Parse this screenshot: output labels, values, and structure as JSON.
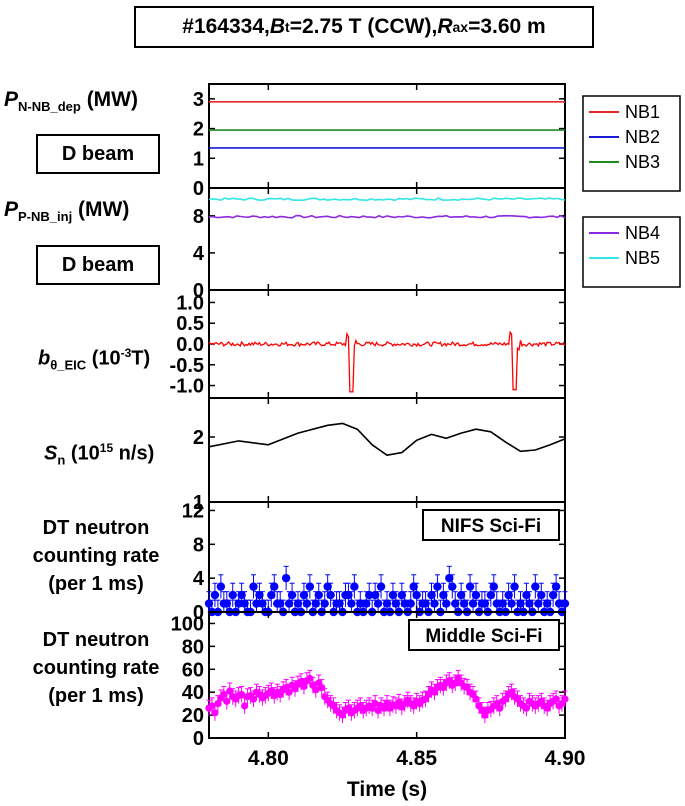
{
  "figure": {
    "title_parts": [
      "#164334, ",
      "B",
      "t",
      "=2.75 T (CCW), ",
      "R",
      "ax",
      "=3.60 m"
    ],
    "xlabel": "Time (s)"
  },
  "panels_labels": {
    "p_nnb": {
      "sym": "P",
      "sub": "N-NB_dep",
      "unit": " (MW)",
      "box": "D beam"
    },
    "p_pnb": {
      "sym": "P",
      "sub": "P-NB_inj",
      "unit": " (MW)",
      "box": "D beam"
    },
    "b_theta": {
      "sym": "b",
      "sub": "θ_EIC",
      "unit_pre": " (10",
      "unit_sup": "-3",
      "unit_post": "T)"
    },
    "sn": {
      "sym": "S",
      "sub": "n",
      "unit_pre": " (10",
      "unit_sup": "15",
      "unit_post": " n/s)"
    },
    "dt1": {
      "lines": [
        "DT neutron",
        "counting rate",
        "(per 1 ms)"
      ]
    },
    "dt2": {
      "lines": [
        "DT neutron",
        "counting rate",
        "(per 1 ms)"
      ]
    }
  },
  "colors": {
    "NB1": "#e8262b",
    "NB2": "#1a1ad4",
    "NB3": "#1f8a1f",
    "NB4": "#8a2be2",
    "NB5": "#33e6e6",
    "b_theta": "#ff0000",
    "sn": "#000000",
    "nifs": "#0000ff",
    "middle": "#ff00ff"
  },
  "chart_data": [
    {
      "type": "line",
      "id": "p_nnb",
      "xlim": [
        4.78,
        4.9
      ],
      "ylim": [
        0,
        3.5
      ],
      "yticks": [
        "0",
        "1",
        "2",
        "3"
      ],
      "ytick_values": [
        0,
        1,
        2,
        3
      ],
      "series": [
        {
          "name": "NB1",
          "x": [
            4.78,
            4.9
          ],
          "values": [
            2.9,
            2.9
          ]
        },
        {
          "name": "NB2",
          "x": [
            4.78,
            4.9
          ],
          "values": [
            1.35,
            1.35
          ]
        },
        {
          "name": "NB3",
          "x": [
            4.78,
            4.9
          ],
          "values": [
            1.95,
            1.95
          ]
        }
      ],
      "legend": [
        "NB1",
        "NB2",
        "NB3"
      ],
      "legend_position": "right"
    },
    {
      "type": "line",
      "id": "p_pnb",
      "xlim": [
        4.78,
        4.9
      ],
      "ylim": [
        0,
        11
      ],
      "yticks": [
        "0",
        "4",
        "8"
      ],
      "ytick_values": [
        0,
        4,
        8
      ],
      "series": [
        {
          "name": "NB4",
          "x": [
            4.78,
            4.9
          ],
          "values": [
            7.9,
            7.9
          ]
        },
        {
          "name": "NB5",
          "x": [
            4.78,
            4.9
          ],
          "values": [
            9.8,
            9.8
          ]
        }
      ],
      "legend": [
        "NB4",
        "NB5"
      ],
      "legend_position": "right"
    },
    {
      "type": "line",
      "id": "b_theta",
      "xlim": [
        4.78,
        4.9
      ],
      "ylim": [
        -1.3,
        1.3
      ],
      "yticks": [
        "1.0",
        "0.5",
        "0.0",
        "-0.5",
        "-1.0"
      ],
      "ytick_values": [
        1.0,
        0.5,
        0.0,
        -0.5,
        -1.0
      ],
      "series": [
        {
          "name": "b_theta_EIC",
          "baseline": 0.0,
          "noise": 0.05,
          "spikes": [
            {
              "x": 4.828,
              "max": 0.25,
              "min": -1.15
            },
            {
              "x": 4.883,
              "max": 0.3,
              "min": -1.1
            }
          ]
        }
      ]
    },
    {
      "type": "line",
      "id": "sn",
      "xlim": [
        4.78,
        4.9
      ],
      "ylim": [
        1.0,
        2.6
      ],
      "yticks": [
        "1",
        "2"
      ],
      "ytick_values": [
        1,
        2
      ],
      "series": [
        {
          "name": "Sn",
          "x": [
            4.78,
            4.79,
            4.8,
            4.81,
            4.82,
            4.825,
            4.83,
            4.835,
            4.84,
            4.845,
            4.85,
            4.855,
            4.86,
            4.865,
            4.87,
            4.875,
            4.88,
            4.885,
            4.89,
            4.895,
            4.9
          ],
          "values": [
            1.85,
            1.94,
            1.88,
            2.06,
            2.18,
            2.21,
            2.12,
            1.88,
            1.72,
            1.76,
            1.95,
            2.04,
            1.98,
            2.06,
            2.12,
            2.08,
            1.92,
            1.78,
            1.8,
            1.88,
            1.97
          ]
        }
      ]
    },
    {
      "type": "scatter",
      "id": "nifs",
      "xlim": [
        4.78,
        4.9
      ],
      "ylim": [
        0,
        13
      ],
      "yticks": [
        "0",
        "4",
        "8",
        "12"
      ],
      "ytick_values": [
        0,
        4,
        8,
        12
      ],
      "annotation": "NIFS Sci-Fi",
      "series": [
        {
          "name": "NIFS Sci-Fi",
          "x_start": 4.78,
          "x_step": 0.001,
          "error": 1.4,
          "values": [
            1,
            0,
            2,
            0,
            3,
            1,
            1,
            0,
            2,
            0,
            1,
            2,
            1,
            0,
            0,
            3,
            1,
            2,
            1,
            0,
            0,
            2,
            3,
            1,
            1,
            0,
            4,
            1,
            2,
            0,
            1,
            0,
            2,
            1,
            3,
            0,
            1,
            2,
            0,
            1,
            3,
            2,
            0,
            1,
            1,
            0,
            2,
            2,
            1,
            3,
            0,
            1,
            0,
            1,
            2,
            0,
            2,
            1,
            3,
            0,
            1,
            0,
            2,
            1,
            0,
            2,
            1,
            0,
            1,
            3,
            2,
            0,
            1,
            1,
            0,
            2,
            1,
            3,
            0,
            2,
            1,
            4,
            3,
            1,
            0,
            2,
            1,
            0,
            3,
            1,
            2,
            0,
            1,
            1,
            0,
            2,
            3,
            1,
            0,
            1,
            0,
            2,
            1,
            3,
            0,
            1,
            0,
            2,
            1,
            0,
            3,
            1,
            2,
            0,
            1,
            0,
            2,
            3,
            1,
            0,
            1
          ]
        }
      ]
    },
    {
      "type": "scatter",
      "id": "middle",
      "xlim": [
        4.78,
        4.9
      ],
      "ylim": [
        0,
        110
      ],
      "yticks": [
        "0",
        "20",
        "40",
        "60",
        "80",
        "100"
      ],
      "ytick_values": [
        0,
        20,
        40,
        60,
        80,
        100
      ],
      "xticks": [
        "4.80",
        "4.85",
        "4.90"
      ],
      "xtick_values": [
        4.8,
        4.85,
        4.9
      ],
      "annotation": "Middle Sci-Fi",
      "series": [
        {
          "name": "Middle Sci-Fi",
          "x_start": 4.78,
          "x_step": 0.001,
          "error": 7,
          "values": [
            26,
            28,
            22,
            30,
            35,
            38,
            32,
            41,
            36,
            34,
            37,
            38,
            28,
            36,
            37,
            34,
            40,
            38,
            35,
            37,
            39,
            41,
            37,
            40,
            38,
            42,
            44,
            40,
            46,
            43,
            47,
            49,
            45,
            50,
            52,
            46,
            42,
            48,
            44,
            36,
            33,
            30,
            28,
            24,
            22,
            20,
            24,
            26,
            22,
            24,
            26,
            28,
            24,
            26,
            28,
            26,
            30,
            24,
            28,
            26,
            30,
            26,
            29,
            28,
            31,
            27,
            30,
            33,
            30,
            28,
            32,
            30,
            33,
            34,
            38,
            42,
            40,
            44,
            46,
            44,
            48,
            50,
            46,
            48,
            52,
            48,
            45,
            44,
            40,
            38,
            34,
            28,
            24,
            20,
            24,
            25,
            28,
            30,
            26,
            32,
            34,
            38,
            40,
            36,
            34,
            30,
            28,
            26,
            32,
            30,
            28,
            30,
            32,
            28,
            26,
            30,
            32,
            34,
            28,
            30,
            34
          ]
        }
      ]
    }
  ]
}
